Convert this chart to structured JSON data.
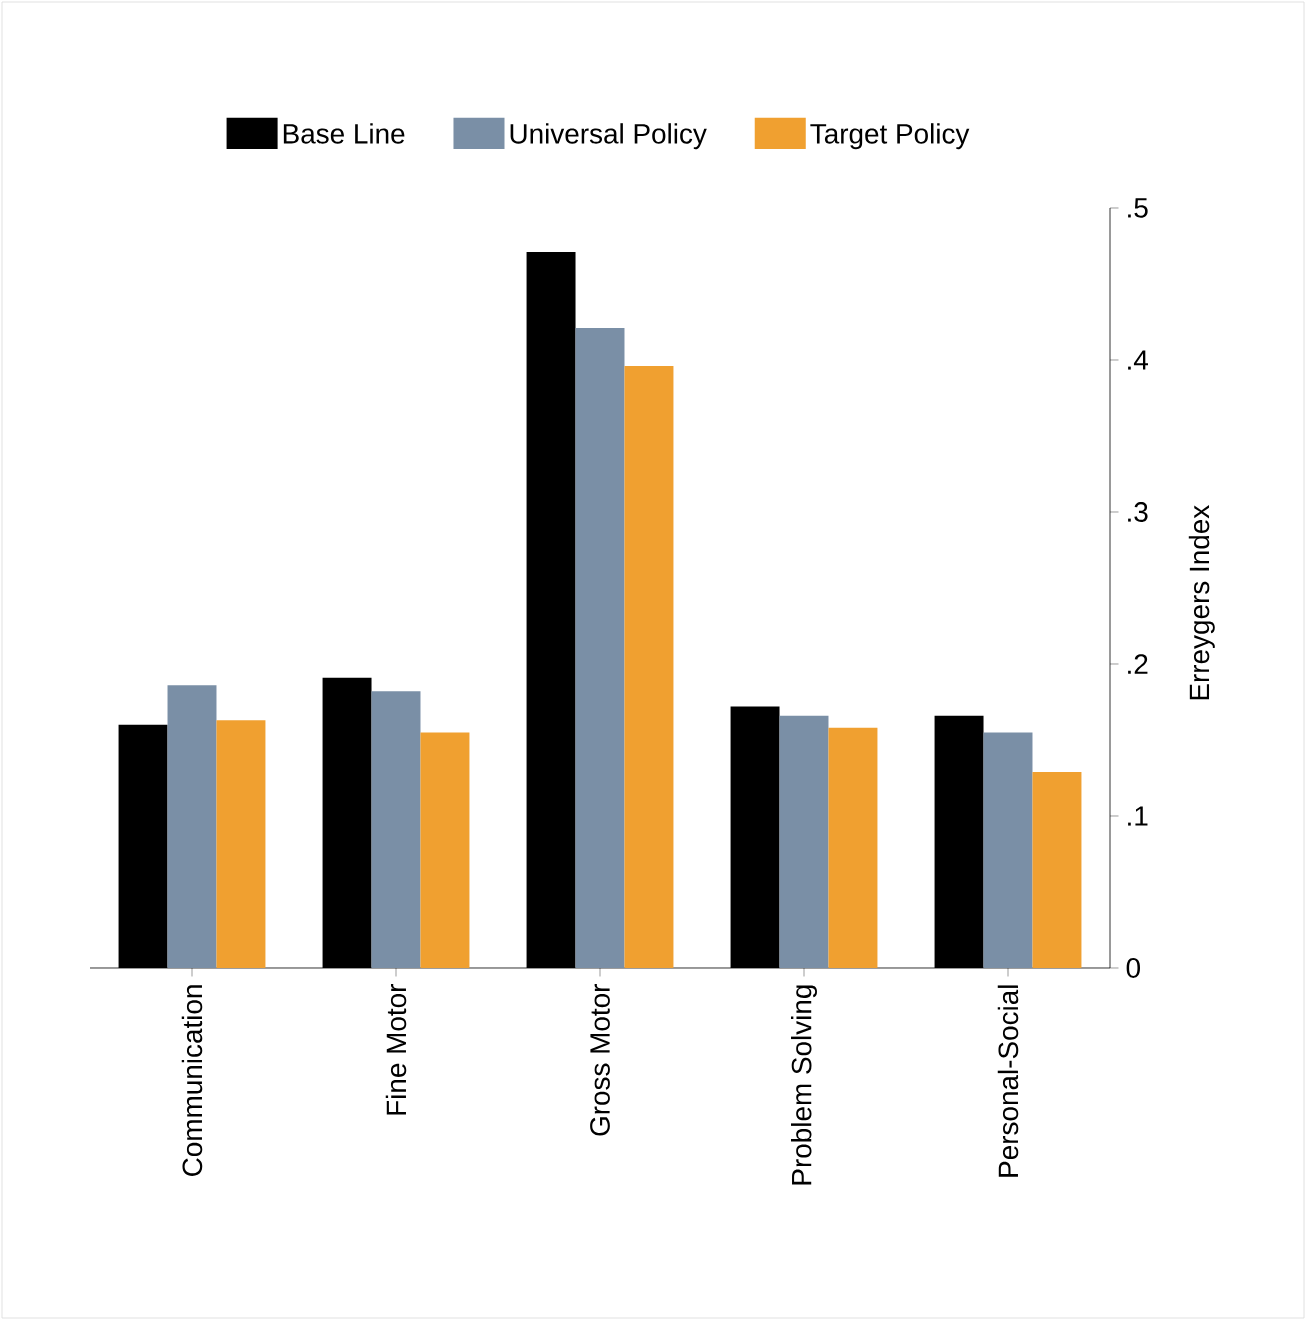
{
  "chart_data": {
    "type": "bar",
    "ylabel": "Erreygers Index",
    "categories": [
      "Communication",
      "Fine Motor",
      "Gross Motor",
      "Problem Solving",
      "Personal-Social"
    ],
    "series": [
      {
        "name": "Base Line",
        "color": "#000000",
        "values": [
          0.16,
          0.191,
          0.471,
          0.172,
          0.166
        ]
      },
      {
        "name": "Universal Policy",
        "color": "#7a8fa6",
        "values": [
          0.186,
          0.182,
          0.421,
          0.166,
          0.155
        ]
      },
      {
        "name": "Target Policy",
        "color": "#f0a030",
        "values": [
          0.163,
          0.155,
          0.396,
          0.158,
          0.129
        ]
      }
    ],
    "ylim": [
      0,
      0.5
    ],
    "yticks": [
      0,
      {
        "value": 0.1,
        "label": ".1"
      },
      {
        "value": 0.2,
        "label": ".2"
      },
      {
        "value": 0.3,
        "label": ".3"
      },
      {
        "value": 0.4,
        "label": ".4"
      },
      {
        "value": 0.5,
        "label": ".5"
      }
    ],
    "legend": "top",
    "grid": false
  }
}
